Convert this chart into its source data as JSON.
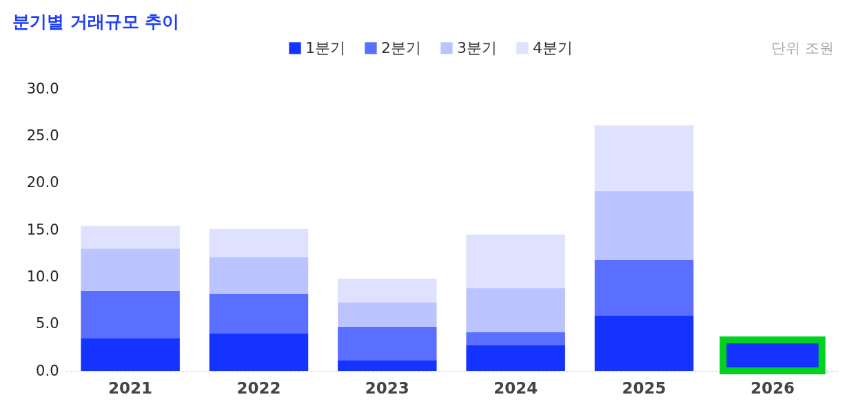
{
  "chart_data": {
    "type": "bar",
    "title": "분기별 거래규모 추이",
    "stacked": true,
    "legend": "top",
    "grid": false,
    "categories": [
      "2021",
      "2022",
      "2023",
      "2024",
      "2025",
      "2026"
    ],
    "series": [
      {
        "name": "1분기",
        "color": "#1433ff",
        "values": [
          3.5,
          4.0,
          1.1,
          2.7,
          5.9,
          3.3
        ]
      },
      {
        "name": "2분기",
        "color": "#5a6eff",
        "values": [
          5.0,
          4.2,
          3.6,
          1.4,
          5.9,
          null
        ]
      },
      {
        "name": "3분기",
        "color": "#bcc4ff",
        "values": [
          4.5,
          3.9,
          2.6,
          4.7,
          7.3,
          null
        ]
      },
      {
        "name": "4분기",
        "color": "#dee2ff",
        "values": [
          2.4,
          3.0,
          2.5,
          5.7,
          7.0,
          null
        ]
      }
    ],
    "ylim": [
      0,
      30
    ],
    "yticks": [
      {
        "value": 0,
        "label": "0.0"
      },
      {
        "value": 5,
        "label": "5.0"
      },
      {
        "value": 10,
        "label": "10.0"
      },
      {
        "value": 15,
        "label": "15.0"
      },
      {
        "value": 20,
        "label": "20.0"
      },
      {
        "value": 25,
        "label": "25.0"
      },
      {
        "value": 30,
        "label": "30.0"
      }
    ],
    "annotations": [
      "단위 조원"
    ]
  }
}
